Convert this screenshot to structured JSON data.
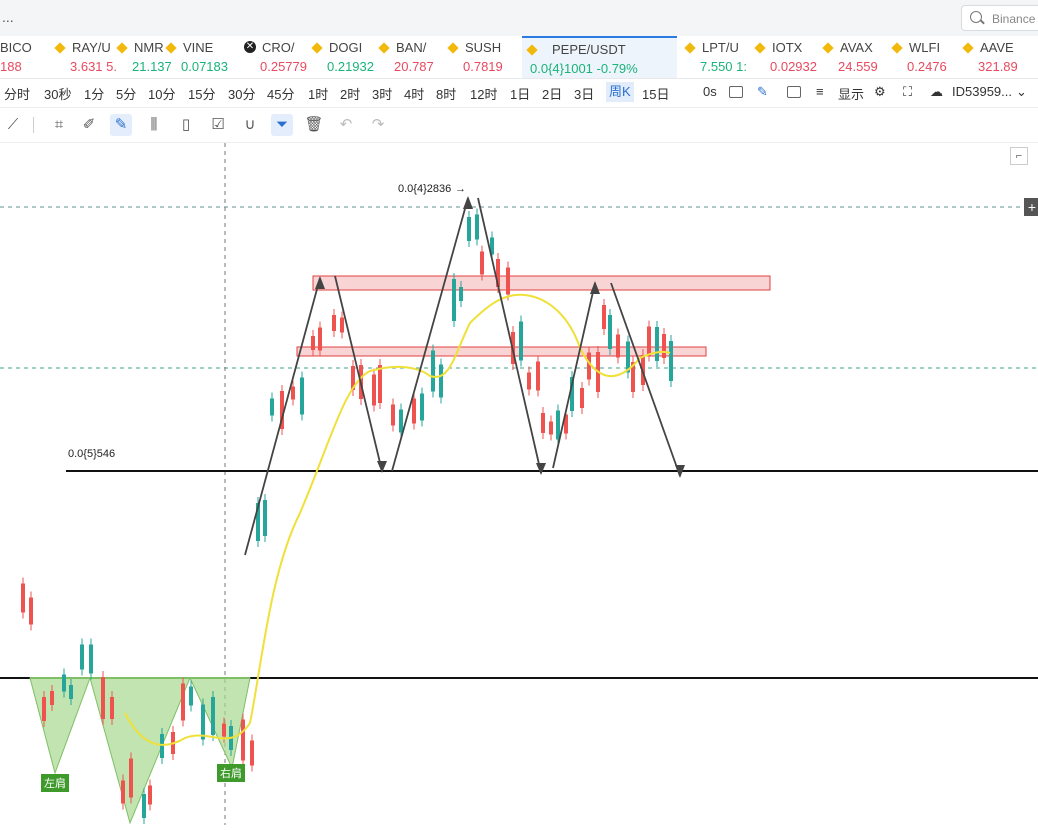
{
  "window": {
    "title_ellipsis": "...",
    "search_placeholder": "Binance"
  },
  "tickers": [
    {
      "sym": "BICO",
      "price": "188",
      "dir": "dn",
      "icon": "none"
    },
    {
      "sym": "RAY/U",
      "price": "3.631 5.",
      "dir": "dn",
      "icon": "diamond"
    },
    {
      "sym": "NMR",
      "price": "21.137",
      "dir": "up",
      "icon": "diamond"
    },
    {
      "sym": "VINE",
      "price": "0.07183",
      "dir": "up",
      "icon": "diamond"
    },
    {
      "sym": "CRO/",
      "price": "0.25779",
      "dir": "dn",
      "icon": "x-circle"
    },
    {
      "sym": "DOGI",
      "price": "0.21932",
      "dir": "up",
      "icon": "diamond"
    },
    {
      "sym": "BAN/",
      "price": "20.787",
      "dir": "dn",
      "icon": "diamond"
    },
    {
      "sym": "SUSH",
      "price": "0.7819",
      "dir": "dn",
      "icon": "diamond"
    },
    {
      "sym": "PEPE/USDT",
      "price": "0.0{4}1001  -0.79%",
      "dir": "up",
      "icon": "diamond",
      "active": true
    },
    {
      "sym": "LPT/U",
      "price": "7.550 1:",
      "dir": "up",
      "icon": "diamond"
    },
    {
      "sym": "IOTX",
      "price": "0.02932",
      "dir": "dn",
      "icon": "diamond"
    },
    {
      "sym": "AVAX",
      "price": "24.559",
      "dir": "dn",
      "icon": "diamond"
    },
    {
      "sym": "WLFI",
      "price": "0.2476",
      "dir": "dn",
      "icon": "diamond"
    },
    {
      "sym": "AAVE",
      "price": "321.89",
      "dir": "dn",
      "icon": "diamond"
    }
  ],
  "intervals": [
    "分时",
    "30秒",
    "1分",
    "5分",
    "10分",
    "15分",
    "30分",
    "45分",
    "1时",
    "2时",
    "3时",
    "4时",
    "8时",
    "12时",
    "1日",
    "2日",
    "3日",
    "周K",
    "15日"
  ],
  "selected_interval": "周K",
  "right_controls": {
    "countdown": "0s",
    "display": "显示",
    "account": "ID53959..."
  },
  "chart": {
    "high_label": "0.0{4}2836",
    "low_label": "0.0{5}546",
    "left_shoulder": "左肩",
    "right_shoulder": "右肩",
    "colors": {
      "up": "#26a69a",
      "down": "#ef5350",
      "ma": "#f2e84a",
      "pattern": "#8fcf7a",
      "zone": "#f7c9c9"
    }
  }
}
